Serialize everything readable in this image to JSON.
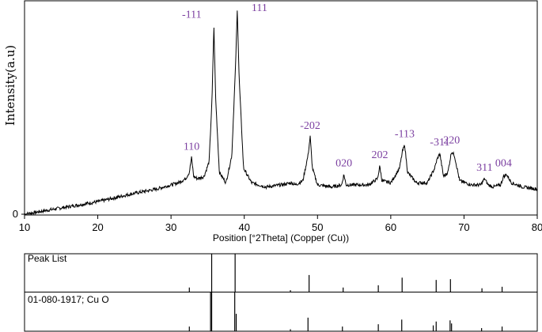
{
  "chart_data": {
    "type": "line",
    "xlabel": "Position [°2Theta] (Copper (Cu))",
    "ylabel": "Intensity(a.u)",
    "xlim": [
      10,
      80
    ],
    "ylim": [
      0,
      100
    ],
    "x_ticks": [
      10,
      20,
      30,
      40,
      50,
      60,
      70,
      80
    ],
    "y_ticks": [
      0
    ],
    "grid": false,
    "series": [
      {
        "x": [
          10,
          15,
          20,
          25,
          28,
          30,
          31,
          32,
          32.5,
          32.8,
          33.1,
          33.6,
          34.5,
          35.2,
          35.6,
          35.85,
          36.1,
          36.6,
          37.5,
          38.3,
          38.8,
          39.05,
          39.3,
          39.9,
          41,
          43,
          45,
          46.5,
          47,
          48,
          48.7,
          49.0,
          49.3,
          50,
          52,
          53.3,
          53.6,
          53.9,
          55,
          57,
          58.2,
          58.5,
          58.8,
          60,
          61.2,
          61.6,
          61.9,
          62.3,
          63.5,
          65,
          66,
          66.3,
          66.7,
          67.2,
          67.8,
          68.3,
          68.7,
          69.4,
          71,
          72.3,
          72.8,
          73.3,
          74,
          75,
          75.4,
          75.8,
          76.5,
          78,
          80
        ],
        "y": [
          0,
          3,
          6,
          10,
          12,
          14,
          15,
          17,
          20,
          27,
          18,
          17,
          18,
          25,
          55,
          90,
          55,
          20,
          15,
          28,
          70,
          98,
          65,
          22,
          15,
          13,
          14,
          15,
          14,
          16,
          28,
          37,
          22,
          14,
          13,
          14,
          19,
          14,
          14,
          14,
          17,
          23,
          16,
          15,
          22,
          30,
          33,
          20,
          15,
          15,
          22,
          26,
          29,
          18,
          20,
          30,
          28,
          16,
          14,
          14,
          17,
          14,
          13,
          14,
          18,
          19,
          15,
          13,
          12
        ]
      }
    ],
    "peak_labels": [
      {
        "text": "110",
        "x": 32.8,
        "y": 27
      },
      {
        "text": "-111",
        "x": 35.85,
        "y": 90
      },
      {
        "text": "111",
        "x": 39.05,
        "y": 98
      },
      {
        "text": "-202",
        "x": 49.0,
        "y": 37
      },
      {
        "text": "020",
        "x": 53.6,
        "y": 19
      },
      {
        "text": "202",
        "x": 58.5,
        "y": 23
      },
      {
        "text": "-113",
        "x": 61.9,
        "y": 33
      },
      {
        "text": "-311",
        "x": 66.7,
        "y": 29
      },
      {
        "text": "220",
        "x": 68.3,
        "y": 30
      },
      {
        "text": "311",
        "x": 72.8,
        "y": 17
      },
      {
        "text": "004",
        "x": 75.4,
        "y": 19
      }
    ],
    "peak_list": {
      "label": "Peak List",
      "x": [
        32.5,
        35.55,
        38.75,
        46.3,
        48.85,
        53.5,
        58.3,
        61.55,
        66.2,
        68.15,
        72.45,
        75.2
      ],
      "height": [
        0.12,
        1.0,
        1.0,
        0.05,
        0.45,
        0.12,
        0.18,
        0.38,
        0.32,
        0.34,
        0.1,
        0.14
      ]
    },
    "reference": {
      "label": "01-080-1917; Cu O",
      "x": [
        32.5,
        35.4,
        35.55,
        38.7,
        38.9,
        46.3,
        48.7,
        53.4,
        58.3,
        61.5,
        65.8,
        66.2,
        68.1,
        68.3,
        72.4,
        75.2
      ],
      "height": [
        0.12,
        1.0,
        1.0,
        1.0,
        0.45,
        0.05,
        0.35,
        0.12,
        0.18,
        0.3,
        0.15,
        0.25,
        0.28,
        0.2,
        0.08,
        0.12
      ]
    },
    "colors": {
      "line": "#000000",
      "peak_label": "#7b3fa0",
      "frame": "#000000"
    }
  }
}
